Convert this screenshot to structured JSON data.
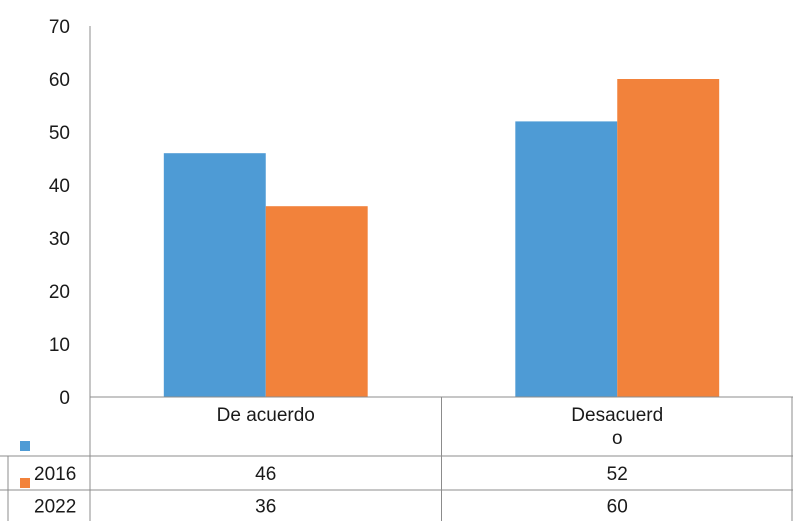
{
  "chart_data": {
    "type": "bar",
    "categories": [
      "De acuerdo",
      "Desacuerd\no"
    ],
    "series": [
      {
        "name": "2016",
        "values": [
          46,
          52
        ],
        "color": "#4e9bd5"
      },
      {
        "name": "2022",
        "values": [
          36,
          60
        ],
        "color": "#f2823b"
      }
    ],
    "ylim": [
      0,
      70
    ],
    "yticks": [
      0,
      10,
      20,
      30,
      40,
      50,
      60,
      70
    ],
    "legend": "data-table-below",
    "grid": false
  }
}
